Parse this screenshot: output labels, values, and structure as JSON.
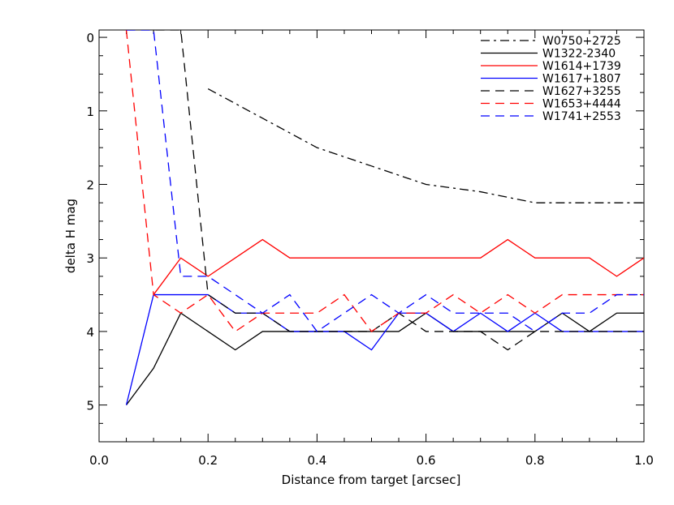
{
  "chart_data": {
    "type": "line",
    "title": "",
    "xlabel": "Distance from target [arcsec]",
    "ylabel": "delta H mag",
    "xlim": [
      0.0,
      1.0
    ],
    "ylim": [
      5.5,
      -0.1
    ],
    "y_inverted": true,
    "grid": false,
    "legend_placement": "top-right",
    "xticks": [
      0.0,
      0.2,
      0.4,
      0.6,
      0.8,
      1.0
    ],
    "xtick_labels": [
      "0.0",
      "0.2",
      "0.4",
      "0.6",
      "0.8",
      "1.0"
    ],
    "yticks": [
      0,
      1,
      2,
      3,
      4,
      5
    ],
    "ytick_labels": [
      "0",
      "1",
      "2",
      "3",
      "4",
      "5"
    ],
    "series": [
      {
        "name": "W0750+2725",
        "color": "#000000",
        "dash": "dashdot",
        "x": [
          0.2,
          0.3,
          0.4,
          0.5,
          0.6,
          0.7,
          0.8,
          0.9,
          1.0
        ],
        "y": [
          0.7,
          1.1,
          1.5,
          1.75,
          2.0,
          2.1,
          2.25,
          2.25,
          2.25
        ]
      },
      {
        "name": "W1322-2340",
        "color": "#000000",
        "dash": "solid",
        "x": [
          0.05,
          0.1,
          0.15,
          0.2,
          0.25,
          0.3,
          0.35,
          0.4,
          0.45,
          0.5,
          0.55,
          0.6,
          0.65,
          0.7,
          0.75,
          0.8,
          0.85,
          0.9,
          0.95,
          1.0
        ],
        "y": [
          5.0,
          4.5,
          3.75,
          4.0,
          4.25,
          4.0,
          4.0,
          4.0,
          4.0,
          4.0,
          4.0,
          3.75,
          4.0,
          4.0,
          4.0,
          4.0,
          3.75,
          4.0,
          3.75,
          3.75
        ]
      },
      {
        "name": "W1614+1739",
        "color": "#ff0000",
        "dash": "solid",
        "x": [
          0.1,
          0.15,
          0.2,
          0.25,
          0.3,
          0.35,
          0.4,
          0.45,
          0.5,
          0.55,
          0.6,
          0.65,
          0.7,
          0.75,
          0.8,
          0.85,
          0.9,
          0.95,
          1.0
        ],
        "y": [
          3.5,
          3.0,
          3.25,
          3.0,
          2.75,
          3.0,
          3.0,
          3.0,
          3.0,
          3.0,
          3.0,
          3.0,
          3.0,
          2.75,
          3.0,
          3.0,
          3.0,
          3.25,
          3.0
        ]
      },
      {
        "name": "W1617+1807",
        "color": "#0000ff",
        "dash": "solid",
        "x": [
          0.05,
          0.1,
          0.15,
          0.2,
          0.25,
          0.3,
          0.35,
          0.4,
          0.45,
          0.5,
          0.55,
          0.6,
          0.65,
          0.7,
          0.75,
          0.8,
          0.85,
          0.9,
          0.95,
          1.0
        ],
        "y": [
          5.0,
          3.5,
          3.5,
          3.5,
          3.75,
          3.75,
          4.0,
          4.0,
          4.0,
          4.25,
          3.75,
          3.75,
          4.0,
          3.75,
          4.0,
          3.75,
          4.0,
          4.0,
          4.0,
          4.0
        ]
      },
      {
        "name": "W1627+3255",
        "color": "#000000",
        "dash": "dashed",
        "x": [
          0.05,
          0.1,
          0.15,
          0.2,
          0.25,
          0.3,
          0.35,
          0.4,
          0.45,
          0.5,
          0.55,
          0.6,
          0.65,
          0.7,
          0.75,
          0.8,
          0.85,
          0.9,
          0.95,
          1.0
        ],
        "y": [
          -0.1,
          -0.1,
          -0.1,
          3.5,
          3.75,
          3.75,
          4.0,
          4.0,
          4.0,
          4.0,
          3.75,
          4.0,
          4.0,
          4.0,
          4.25,
          4.0,
          4.0,
          4.0,
          4.0,
          4.0
        ]
      },
      {
        "name": "W1653+4444",
        "color": "#ff0000",
        "dash": "dashed",
        "x": [
          0.05,
          0.1,
          0.15,
          0.2,
          0.25,
          0.3,
          0.35,
          0.4,
          0.45,
          0.5,
          0.55,
          0.6,
          0.65,
          0.7,
          0.75,
          0.8,
          0.85,
          0.9,
          0.95,
          1.0
        ],
        "y": [
          -0.1,
          3.5,
          3.75,
          3.5,
          4.0,
          3.75,
          3.75,
          3.75,
          3.5,
          4.0,
          3.75,
          3.75,
          3.5,
          3.75,
          3.5,
          3.75,
          3.5,
          3.5,
          3.5,
          3.5
        ]
      },
      {
        "name": "W1741+2553",
        "color": "#0000ff",
        "dash": "dashed",
        "x": [
          0.05,
          0.1,
          0.15,
          0.2,
          0.25,
          0.3,
          0.35,
          0.4,
          0.45,
          0.5,
          0.55,
          0.6,
          0.65,
          0.7,
          0.75,
          0.8,
          0.85,
          0.9,
          0.95,
          1.0
        ],
        "y": [
          -0.1,
          -0.1,
          3.25,
          3.25,
          3.5,
          3.75,
          3.5,
          4.0,
          3.75,
          3.5,
          3.75,
          3.5,
          3.75,
          3.75,
          3.75,
          4.0,
          3.75,
          3.75,
          3.5,
          3.5
        ]
      }
    ]
  }
}
